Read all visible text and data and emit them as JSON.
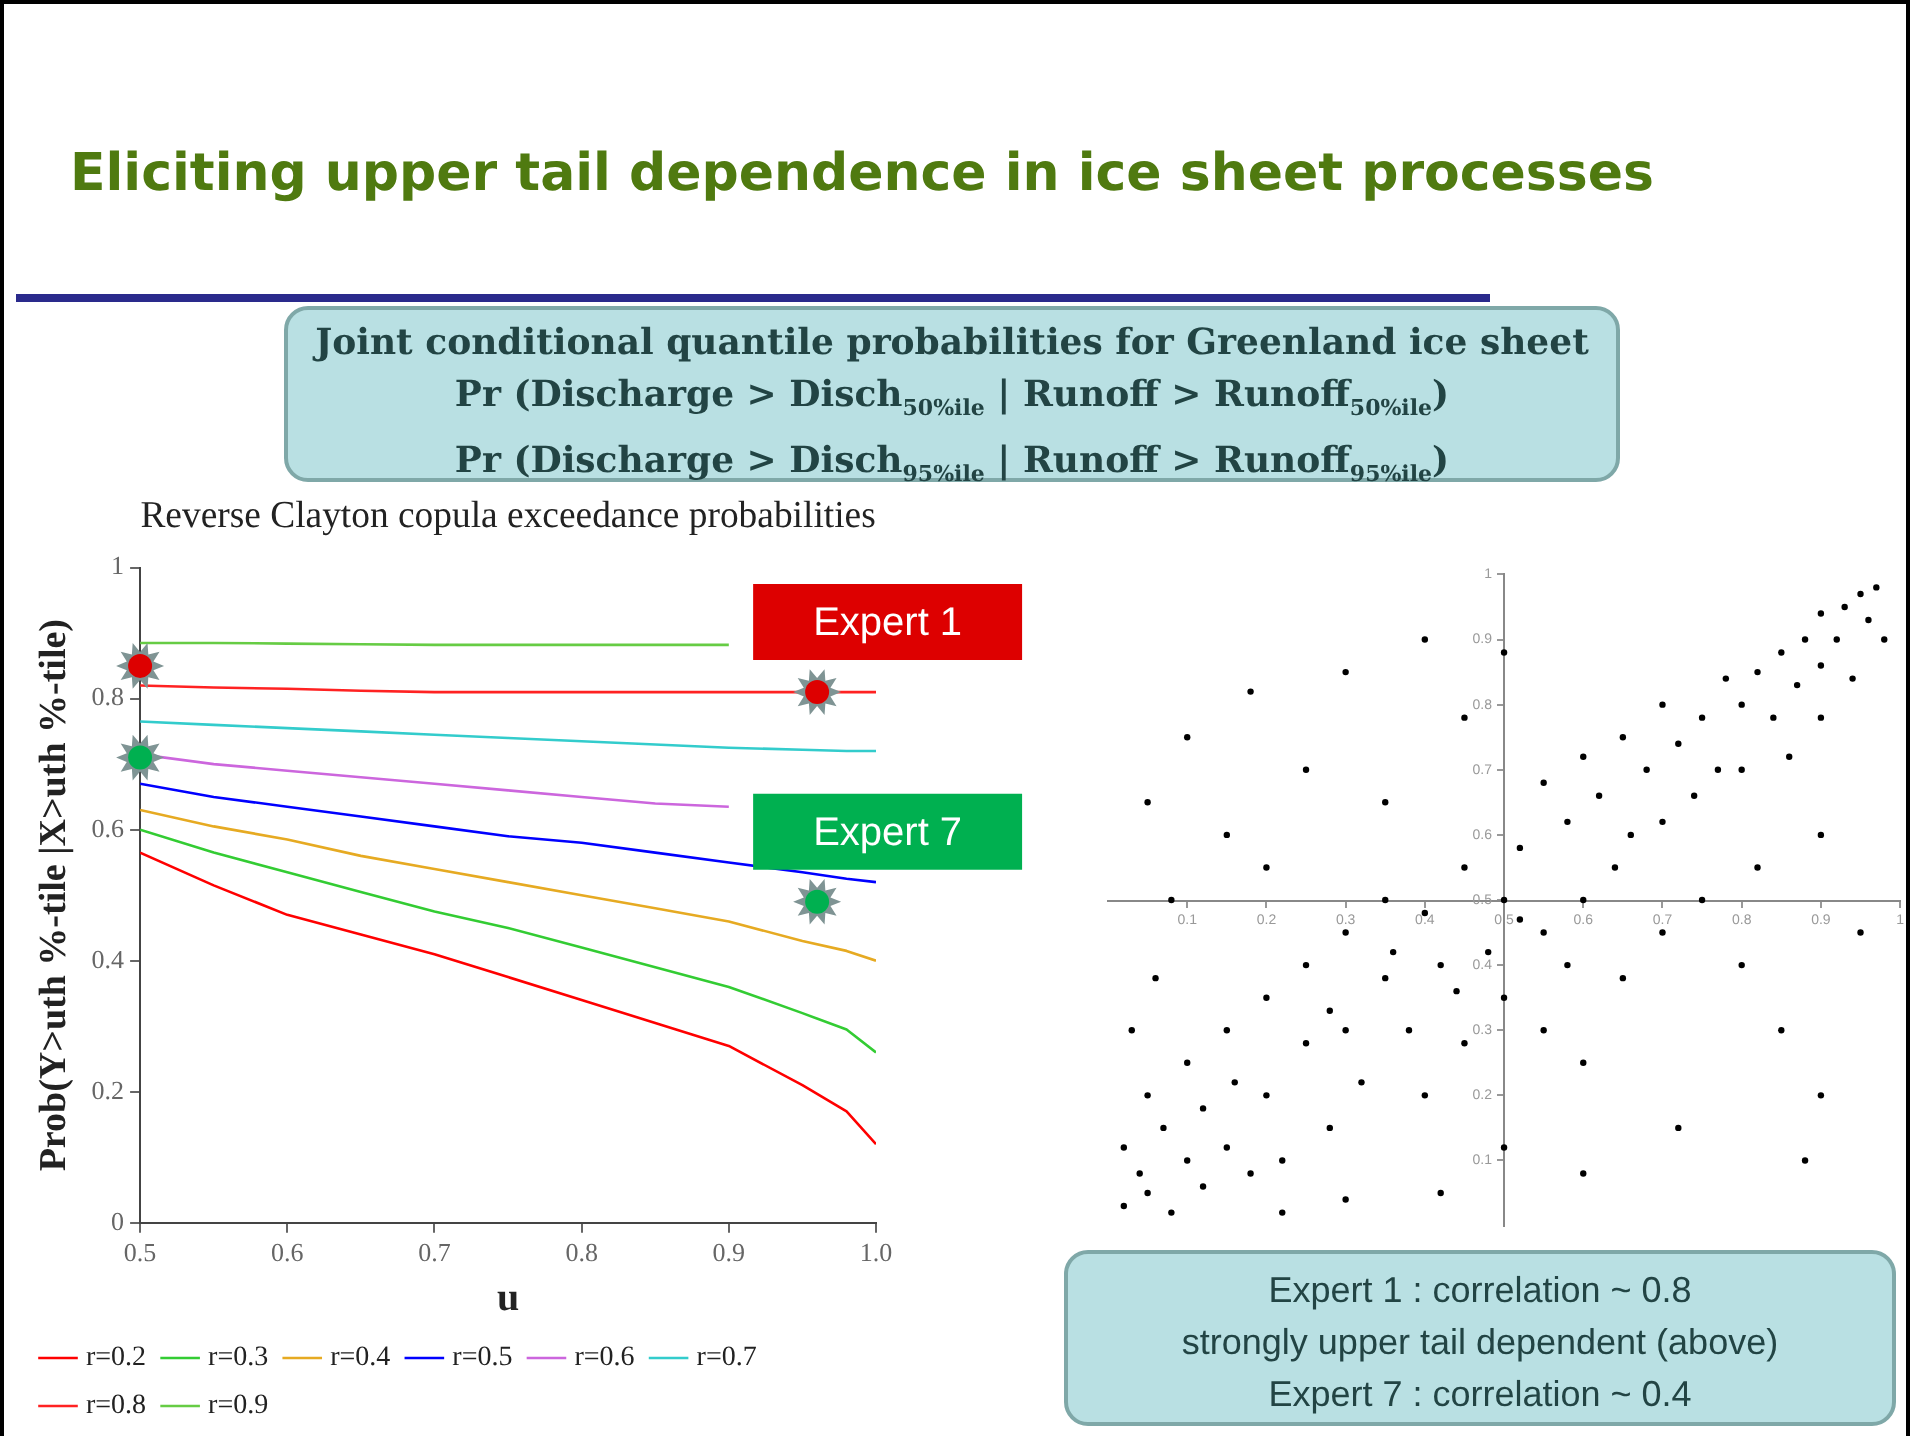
{
  "chart_data": [
    {
      "type": "line",
      "title": "Eliciting upper tail dependence in ice sheet processes",
      "subtitle": "Reverse Clayton copula exceedance probabilities",
      "xlabel": "u",
      "ylabel": "Prob(Y>uth %-tile |X>uth %-tile)",
      "annotations": [
        "Joint conditional quantile probabilities for Greenland ice sheet",
        "Pr (Discharge > Disch$_{50%ile}$  | Runoff > Runoff$_{50%ile}$)",
        "Pr (Discharge > Disch$_{95%ile}$  | Runoff > Runoff$_{95%ile}$)"
      ],
      "x": [
        0.5,
        0.55,
        0.6,
        0.65,
        0.7,
        0.75,
        0.8,
        0.85,
        0.9,
        0.95,
        0.98,
        1.0
      ],
      "series": [
        {
          "name": "r=0.2",
          "color": "#ff0000",
          "values": [
            0.565,
            0.515,
            0.47,
            0.44,
            0.41,
            0.375,
            0.34,
            0.305,
            0.27,
            0.21,
            0.17,
            0.12
          ]
        },
        {
          "name": "r=0.3",
          "color": "#33cc33",
          "values": [
            0.6,
            0.565,
            0.535,
            0.505,
            0.475,
            0.45,
            0.42,
            0.39,
            0.36,
            0.32,
            0.295,
            0.26
          ]
        },
        {
          "name": "r=0.4",
          "color": "#e6aa22",
          "values": [
            0.63,
            0.605,
            0.585,
            0.56,
            0.54,
            0.52,
            0.5,
            0.48,
            0.46,
            0.43,
            0.415,
            0.4
          ]
        },
        {
          "name": "r=0.5",
          "color": "#0000ff",
          "values": [
            0.67,
            0.65,
            0.635,
            0.62,
            0.605,
            0.59,
            0.58,
            0.565,
            0.55,
            0.535,
            0.525,
            0.52
          ]
        },
        {
          "name": "r=0.6",
          "color": "#cc66dd",
          "values": [
            0.715,
            0.7,
            0.69,
            0.68,
            0.67,
            0.66,
            0.65,
            0.64,
            0.635,
            null,
            null,
            null
          ]
        },
        {
          "name": "r=0.7",
          "color": "#33cccc",
          "values": [
            0.765,
            0.76,
            0.755,
            0.75,
            0.745,
            0.74,
            0.735,
            0.73,
            0.725,
            0.722,
            0.72,
            0.72
          ]
        },
        {
          "name": "r=0.8",
          "color": "#ff2222",
          "values": [
            0.82,
            0.817,
            0.815,
            0.812,
            0.81,
            0.81,
            0.81,
            0.81,
            0.81,
            0.81,
            0.81,
            0.81
          ]
        },
        {
          "name": "r=0.9",
          "color": "#66cc44",
          "values": [
            0.885,
            0.885,
            0.884,
            0.883,
            0.882,
            0.882,
            0.882,
            0.882,
            0.882,
            null,
            null,
            null
          ]
        },
        {
          "name": "Expert 1",
          "type": "scatter",
          "marker": "circle",
          "color": "#dd0000",
          "x": [
            0.5,
            0.96
          ],
          "values": [
            0.85,
            0.81
          ]
        },
        {
          "name": "Expert 7",
          "type": "scatter",
          "marker": "circle",
          "color": "#00b050",
          "x": [
            0.5,
            0.96
          ],
          "values": [
            0.71,
            0.49
          ]
        }
      ],
      "xlim": [
        0.5,
        1.0
      ],
      "xticks": [
        0.5,
        0.6,
        0.7,
        0.8,
        0.9,
        {
          "value": 1.0,
          "label": "1.0"
        }
      ],
      "ylim": [
        0,
        1
      ],
      "yticks": [
        0,
        0.2,
        0.4,
        0.6,
        0.8,
        1
      ],
      "grid": false,
      "legend": "bottom"
    },
    {
      "type": "scatter",
      "marker": "circle",
      "annotations": [
        "Expert 1 : correlation ~ 0.8",
        "strongly upper tail dependent (above)",
        "Expert 7 : correlation ~ 0.4"
      ],
      "series": [
        {
          "color": "#000000",
          "x": [
            0.95,
            0.97,
            0.93,
            0.9,
            0.96,
            0.88,
            0.92,
            0.85,
            0.9,
            0.82,
            0.87,
            0.8,
            0.78,
            0.84,
            0.75,
            0.72,
            0.77,
            0.7,
            0.68,
            0.65,
            0.62,
            0.6,
            0.66,
            0.58,
            0.55,
            0.52,
            0.7,
            0.74,
            0.8,
            0.86,
            0.9,
            0.94,
            0.98,
            0.5,
            0.45,
            0.4,
            0.35,
            0.3,
            0.42,
            0.48,
            0.55,
            0.6,
            0.25,
            0.2,
            0.3,
            0.35,
            0.15,
            0.1,
            0.05,
            0.2,
            0.25,
            0.1,
            0.05,
            0.02,
            0.08,
            0.15,
            0.12,
            0.18,
            0.03,
            0.06,
            0.28,
            0.32,
            0.38,
            0.4,
            0.45,
            0.5,
            0.55,
            0.6,
            0.65,
            0.7,
            0.75,
            0.8,
            0.85,
            0.9,
            0.72,
            0.6,
            0.5,
            0.42,
            0.3,
            0.22,
            0.05,
            0.1,
            0.18,
            0.25,
            0.3,
            0.4,
            0.35,
            0.2,
            0.08,
            0.45,
            0.5,
            0.15,
            0.82,
            0.9,
            0.95,
            0.88,
            0.02,
            0.04,
            0.12,
            0.07,
            0.16,
            0.22,
            0.28,
            0.36,
            0.44,
            0.52,
            0.58,
            0.64
          ],
          "values": [
            0.97,
            0.98,
            0.95,
            0.94,
            0.93,
            0.9,
            0.9,
            0.88,
            0.86,
            0.85,
            0.83,
            0.8,
            0.84,
            0.78,
            0.78,
            0.74,
            0.7,
            0.8,
            0.7,
            0.75,
            0.66,
            0.72,
            0.6,
            0.62,
            0.68,
            0.58,
            0.62,
            0.66,
            0.7,
            0.72,
            0.78,
            0.84,
            0.9,
            0.5,
            0.55,
            0.48,
            0.5,
            0.45,
            0.4,
            0.42,
            0.45,
            0.5,
            0.4,
            0.35,
            0.3,
            0.38,
            0.3,
            0.25,
            0.2,
            0.2,
            0.28,
            0.1,
            0.05,
            0.12,
            0.02,
            0.12,
            0.18,
            0.08,
            0.3,
            0.38,
            0.15,
            0.22,
            0.3,
            0.2,
            0.28,
            0.35,
            0.3,
            0.25,
            0.38,
            0.45,
            0.5,
            0.4,
            0.3,
            0.2,
            0.15,
            0.08,
            0.12,
            0.05,
            0.04,
            0.02,
            0.65,
            0.75,
            0.82,
            0.7,
            0.85,
            0.9,
            0.65,
            0.55,
            0.5,
            0.78,
            0.88,
            0.6,
            0.55,
            0.6,
            0.45,
            0.1,
            0.03,
            0.08,
            0.06,
            0.15,
            0.22,
            0.1,
            0.33,
            0.42,
            0.36,
            0.47,
            0.4,
            0.55
          ]
        }
      ],
      "xlim": [
        0,
        1
      ],
      "ylim": [
        0,
        1
      ],
      "xticks": [
        0.1,
        0.2,
        0.3,
        0.4,
        0.5,
        0.6,
        0.7,
        0.8,
        0.9,
        1
      ],
      "yticks": [
        0.1,
        0.2,
        0.3,
        0.4,
        0.5,
        0.6,
        0.7,
        0.8,
        0.9,
        1
      ],
      "grid": false
    }
  ]
}
